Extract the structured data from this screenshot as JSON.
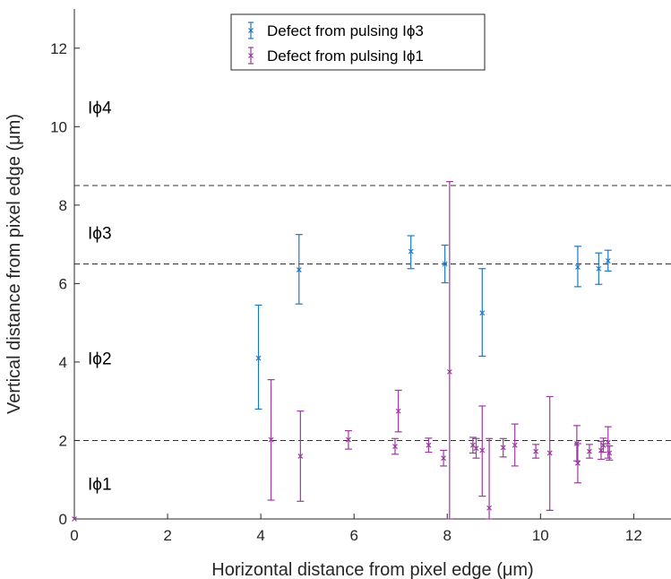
{
  "chart_data": {
    "type": "scatter",
    "title": "",
    "xlabel": "Horizontal distance from pixel edge (μm)",
    "ylabel": "Vertical distance from pixel edge (μm)",
    "xlim": [
      0,
      12.8
    ],
    "ylim": [
      0,
      13
    ],
    "xticks": [
      "0",
      "2",
      "4",
      "6",
      "8",
      "10",
      "12"
    ],
    "yticks": [
      "0",
      "2",
      "4",
      "6",
      "8",
      "10",
      "12"
    ],
    "grid": false,
    "legend_position": "top-center",
    "reference_lines": [
      2,
      6.5,
      8.5
    ],
    "region_labels": [
      {
        "text": "Iϕ4",
        "x": 1,
        "y": 10.5
      },
      {
        "text": "Iϕ3",
        "x": 1,
        "y": 7.3
      },
      {
        "text": "Iϕ2",
        "x": 1,
        "y": 4.1
      },
      {
        "text": "Iϕ1",
        "x": 1,
        "y": 0.9
      }
    ],
    "series": [
      {
        "name": "Defect from pulsing Iϕ3",
        "color": "#1f77c4",
        "points": [
          {
            "x": 3.95,
            "y": 4.1,
            "ylow": 2.8,
            "yhigh": 5.45
          },
          {
            "x": 4.82,
            "y": 6.35,
            "ylow": 5.48,
            "yhigh": 7.25
          },
          {
            "x": 7.22,
            "y": 6.82,
            "ylow": 6.38,
            "yhigh": 7.22
          },
          {
            "x": 7.95,
            "y": 6.5,
            "ylow": 6.02,
            "yhigh": 6.98
          },
          {
            "x": 8.75,
            "y": 5.25,
            "ylow": 4.15,
            "yhigh": 6.38
          },
          {
            "x": 10.8,
            "y": 6.42,
            "ylow": 5.92,
            "yhigh": 6.95
          },
          {
            "x": 11.25,
            "y": 6.38,
            "ylow": 5.98,
            "yhigh": 6.78
          },
          {
            "x": 11.45,
            "y": 6.58,
            "ylow": 6.32,
            "yhigh": 6.85
          }
        ]
      },
      {
        "name": "Defect from pulsing Iϕ1",
        "color": "#9c3ba0",
        "points": [
          {
            "x": 0,
            "y": 0,
            "ylow": 0,
            "yhigh": 0
          },
          {
            "x": 4.22,
            "y": 2.02,
            "ylow": 0.48,
            "yhigh": 3.55
          },
          {
            "x": 4.85,
            "y": 1.6,
            "ylow": 0.45,
            "yhigh": 2.75
          },
          {
            "x": 5.88,
            "y": 2.02,
            "ylow": 1.78,
            "yhigh": 2.25
          },
          {
            "x": 6.88,
            "y": 1.85,
            "ylow": 1.65,
            "yhigh": 2.05
          },
          {
            "x": 6.95,
            "y": 2.75,
            "ylow": 2.22,
            "yhigh": 3.28
          },
          {
            "x": 7.6,
            "y": 1.88,
            "ylow": 1.7,
            "yhigh": 2.06
          },
          {
            "x": 7.92,
            "y": 1.55,
            "ylow": 1.35,
            "yhigh": 1.75
          },
          {
            "x": 8.05,
            "y": 3.75,
            "ylow": 0.0,
            "yhigh": 8.6
          },
          {
            "x": 8.55,
            "y": 1.88,
            "ylow": 1.68,
            "yhigh": 2.08
          },
          {
            "x": 8.62,
            "y": 1.8,
            "ylow": 1.55,
            "yhigh": 2.05
          },
          {
            "x": 8.75,
            "y": 1.75,
            "ylow": 0.58,
            "yhigh": 2.88
          },
          {
            "x": 8.9,
            "y": 0.28,
            "ylow": 0.0,
            "yhigh": 2.05
          },
          {
            "x": 9.2,
            "y": 1.82,
            "ylow": 1.58,
            "yhigh": 2.05
          },
          {
            "x": 9.45,
            "y": 1.88,
            "ylow": 1.35,
            "yhigh": 2.42
          },
          {
            "x": 9.9,
            "y": 1.72,
            "ylow": 1.55,
            "yhigh": 1.9
          },
          {
            "x": 10.2,
            "y": 1.68,
            "ylow": 0.22,
            "yhigh": 3.12
          },
          {
            "x": 10.78,
            "y": 1.92,
            "ylow": 1.48,
            "yhigh": 2.38
          },
          {
            "x": 10.8,
            "y": 1.42,
            "ylow": 0.92,
            "yhigh": 1.92
          },
          {
            "x": 11.05,
            "y": 1.72,
            "ylow": 1.55,
            "yhigh": 1.9
          },
          {
            "x": 11.3,
            "y": 1.75,
            "ylow": 1.52,
            "yhigh": 1.98
          },
          {
            "x": 11.35,
            "y": 1.88,
            "ylow": 1.7,
            "yhigh": 2.06
          },
          {
            "x": 11.45,
            "y": 1.95,
            "ylow": 1.55,
            "yhigh": 2.35
          },
          {
            "x": 11.48,
            "y": 1.68,
            "ylow": 1.5,
            "yhigh": 1.86
          }
        ]
      }
    ]
  }
}
